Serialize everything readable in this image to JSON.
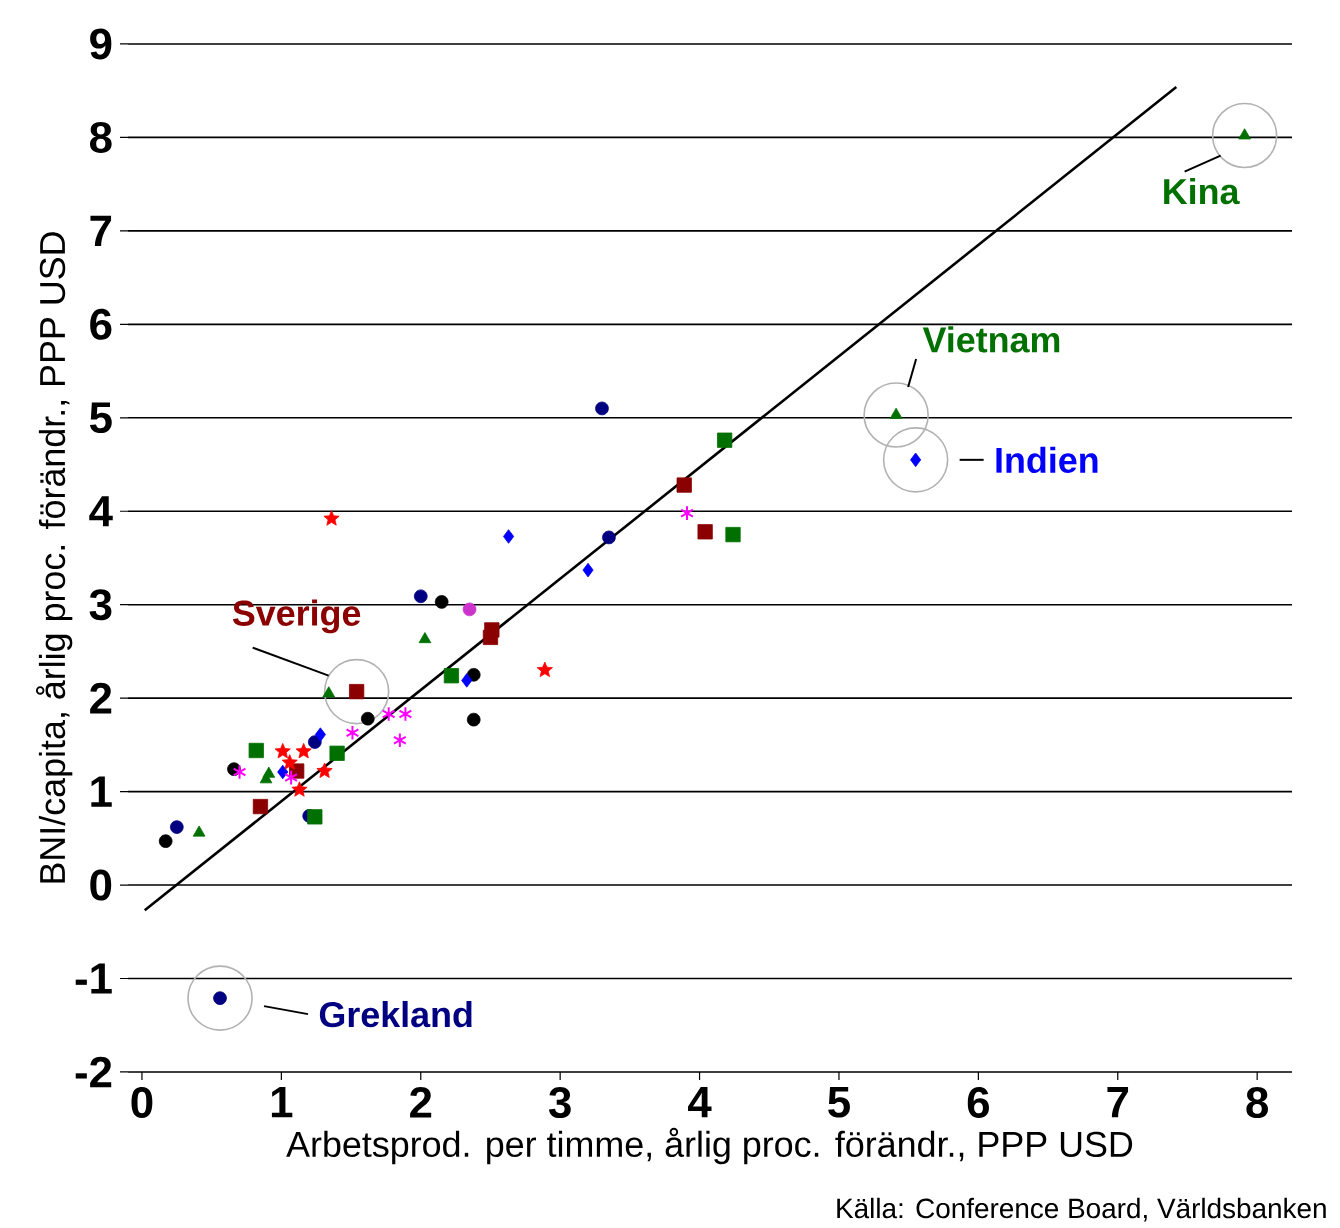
{
  "chart_data": {
    "type": "scatter",
    "xlabel": "Arbetsprod. per timme, årlig proc. förändr., PPP USD",
    "ylabel": "BNI/capita, årlig proc. förändr., PPP USD",
    "xlim": [
      -0.1,
      8.25
    ],
    "ylim": [
      -2,
      9
    ],
    "xticks": [
      0,
      1,
      2,
      3,
      4,
      5,
      6,
      7,
      8
    ],
    "yticks": [
      -2,
      -1,
      0,
      1,
      2,
      3,
      4,
      5,
      6,
      7,
      8,
      9
    ],
    "grid": "y",
    "series": [
      {
        "color": "#000000",
        "marker": "circle",
        "x": [
          0.17,
          0.66,
          1.62,
          2.15,
          2.38,
          2.38
        ],
        "values": [
          0.47,
          1.24,
          1.78,
          3.03,
          2.25,
          1.77
        ]
      },
      {
        "color": "#000080",
        "marker": "circle",
        "x": [
          0.25,
          0.56,
          1.2,
          1.24,
          2.0,
          3.3,
          3.35
        ],
        "values": [
          0.62,
          -1.21,
          0.74,
          1.53,
          3.09,
          5.1,
          3.72
        ]
      },
      {
        "color": "#cc33cc",
        "marker": "circle",
        "x": [
          2.35
        ],
        "values": [
          2.95
        ]
      },
      {
        "color": "#007000",
        "marker": "triangle",
        "x": [
          0.41,
          0.89,
          0.91,
          1.34,
          2.03,
          5.41,
          7.91
        ],
        "values": [
          0.56,
          1.13,
          1.19,
          2.05,
          2.63,
          5.03,
          8.02
        ]
      },
      {
        "color": "#007000",
        "marker": "square",
        "x": [
          0.82,
          1.24,
          1.4,
          2.22,
          4.18,
          4.24
        ],
        "values": [
          1.44,
          0.73,
          1.41,
          2.24,
          4.76,
          3.75
        ]
      },
      {
        "color": "#8b0000",
        "marker": "square",
        "x": [
          0.85,
          1.11,
          1.54,
          2.51,
          2.5,
          3.89,
          4.04
        ],
        "values": [
          0.84,
          1.22,
          2.07,
          2.73,
          2.65,
          4.28,
          3.78
        ]
      },
      {
        "color": "#0000ff",
        "marker": "diamond",
        "x": [
          1.01,
          1.28,
          2.33,
          2.63,
          3.2,
          5.55
        ],
        "values": [
          1.21,
          1.61,
          2.19,
          3.73,
          3.37,
          4.55
        ]
      },
      {
        "color": "#ff0000",
        "marker": "star",
        "x": [
          1.36,
          1.01,
          1.06,
          1.16,
          1.13,
          1.31,
          2.89
        ],
        "values": [
          3.92,
          1.43,
          1.31,
          1.43,
          1.02,
          1.22,
          2.3
        ]
      },
      {
        "color": "#ff00ff",
        "marker": "cross",
        "x": [
          0.7,
          1.07,
          1.51,
          1.77,
          1.89,
          1.85,
          3.91
        ],
        "values": [
          1.21,
          1.15,
          1.63,
          1.83,
          1.83,
          1.55,
          3.98
        ]
      },
      {
        "type": "line",
        "color": "#000000",
        "marker": "none",
        "x": [
          0.02,
          7.42
        ],
        "values": [
          -0.27,
          8.54
        ]
      }
    ],
    "annotations": [
      {
        "text": "Kina",
        "x": 7.91,
        "y": 8.02
      },
      {
        "text": "Vietnam",
        "x": 5.41,
        "y": 5.03
      },
      {
        "text": "Indien",
        "x": 5.55,
        "y": 4.55
      },
      {
        "text": "Sverige",
        "x": 1.54,
        "y": 2.07
      },
      {
        "text": "Grekland",
        "x": 0.56,
        "y": -1.21
      },
      "Källa: Conference Board, Världsbanken"
    ]
  }
}
